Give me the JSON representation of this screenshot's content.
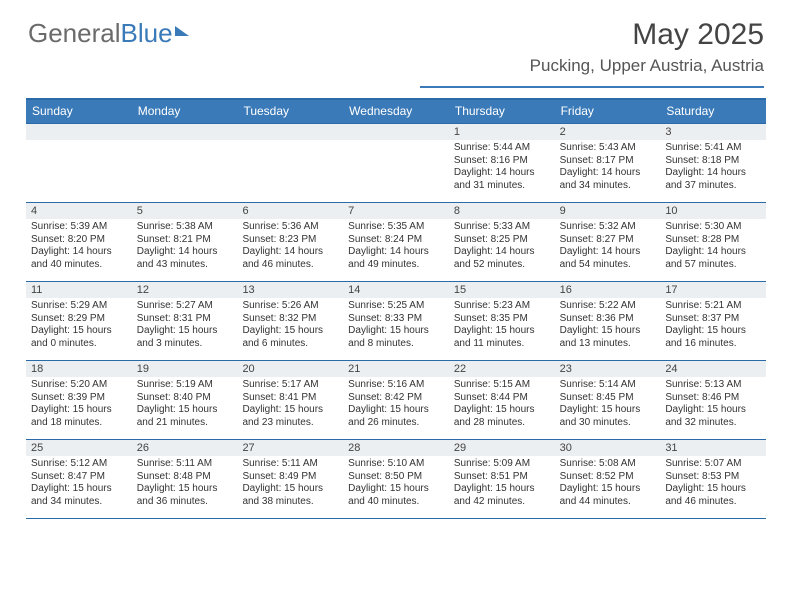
{
  "logo": {
    "part1": "General",
    "part2": "Blue"
  },
  "title": "May 2025",
  "location": "Pucking, Upper Austria, Austria",
  "dow": [
    "Sunday",
    "Monday",
    "Tuesday",
    "Wednesday",
    "Thursday",
    "Friday",
    "Saturday"
  ],
  "colors": {
    "accent": "#3a7ab8",
    "header_bg": "#3a7ab8",
    "daynum_bg": "#eceff1",
    "rule": "#2b6aa8"
  },
  "weeks": [
    [
      {
        "n": "",
        "sr": "",
        "ss": "",
        "dl": ""
      },
      {
        "n": "",
        "sr": "",
        "ss": "",
        "dl": ""
      },
      {
        "n": "",
        "sr": "",
        "ss": "",
        "dl": ""
      },
      {
        "n": "",
        "sr": "",
        "ss": "",
        "dl": ""
      },
      {
        "n": "1",
        "sr": "Sunrise: 5:44 AM",
        "ss": "Sunset: 8:16 PM",
        "dl": "Daylight: 14 hours and 31 minutes."
      },
      {
        "n": "2",
        "sr": "Sunrise: 5:43 AM",
        "ss": "Sunset: 8:17 PM",
        "dl": "Daylight: 14 hours and 34 minutes."
      },
      {
        "n": "3",
        "sr": "Sunrise: 5:41 AM",
        "ss": "Sunset: 8:18 PM",
        "dl": "Daylight: 14 hours and 37 minutes."
      }
    ],
    [
      {
        "n": "4",
        "sr": "Sunrise: 5:39 AM",
        "ss": "Sunset: 8:20 PM",
        "dl": "Daylight: 14 hours and 40 minutes."
      },
      {
        "n": "5",
        "sr": "Sunrise: 5:38 AM",
        "ss": "Sunset: 8:21 PM",
        "dl": "Daylight: 14 hours and 43 minutes."
      },
      {
        "n": "6",
        "sr": "Sunrise: 5:36 AM",
        "ss": "Sunset: 8:23 PM",
        "dl": "Daylight: 14 hours and 46 minutes."
      },
      {
        "n": "7",
        "sr": "Sunrise: 5:35 AM",
        "ss": "Sunset: 8:24 PM",
        "dl": "Daylight: 14 hours and 49 minutes."
      },
      {
        "n": "8",
        "sr": "Sunrise: 5:33 AM",
        "ss": "Sunset: 8:25 PM",
        "dl": "Daylight: 14 hours and 52 minutes."
      },
      {
        "n": "9",
        "sr": "Sunrise: 5:32 AM",
        "ss": "Sunset: 8:27 PM",
        "dl": "Daylight: 14 hours and 54 minutes."
      },
      {
        "n": "10",
        "sr": "Sunrise: 5:30 AM",
        "ss": "Sunset: 8:28 PM",
        "dl": "Daylight: 14 hours and 57 minutes."
      }
    ],
    [
      {
        "n": "11",
        "sr": "Sunrise: 5:29 AM",
        "ss": "Sunset: 8:29 PM",
        "dl": "Daylight: 15 hours and 0 minutes."
      },
      {
        "n": "12",
        "sr": "Sunrise: 5:27 AM",
        "ss": "Sunset: 8:31 PM",
        "dl": "Daylight: 15 hours and 3 minutes."
      },
      {
        "n": "13",
        "sr": "Sunrise: 5:26 AM",
        "ss": "Sunset: 8:32 PM",
        "dl": "Daylight: 15 hours and 6 minutes."
      },
      {
        "n": "14",
        "sr": "Sunrise: 5:25 AM",
        "ss": "Sunset: 8:33 PM",
        "dl": "Daylight: 15 hours and 8 minutes."
      },
      {
        "n": "15",
        "sr": "Sunrise: 5:23 AM",
        "ss": "Sunset: 8:35 PM",
        "dl": "Daylight: 15 hours and 11 minutes."
      },
      {
        "n": "16",
        "sr": "Sunrise: 5:22 AM",
        "ss": "Sunset: 8:36 PM",
        "dl": "Daylight: 15 hours and 13 minutes."
      },
      {
        "n": "17",
        "sr": "Sunrise: 5:21 AM",
        "ss": "Sunset: 8:37 PM",
        "dl": "Daylight: 15 hours and 16 minutes."
      }
    ],
    [
      {
        "n": "18",
        "sr": "Sunrise: 5:20 AM",
        "ss": "Sunset: 8:39 PM",
        "dl": "Daylight: 15 hours and 18 minutes."
      },
      {
        "n": "19",
        "sr": "Sunrise: 5:19 AM",
        "ss": "Sunset: 8:40 PM",
        "dl": "Daylight: 15 hours and 21 minutes."
      },
      {
        "n": "20",
        "sr": "Sunrise: 5:17 AM",
        "ss": "Sunset: 8:41 PM",
        "dl": "Daylight: 15 hours and 23 minutes."
      },
      {
        "n": "21",
        "sr": "Sunrise: 5:16 AM",
        "ss": "Sunset: 8:42 PM",
        "dl": "Daylight: 15 hours and 26 minutes."
      },
      {
        "n": "22",
        "sr": "Sunrise: 5:15 AM",
        "ss": "Sunset: 8:44 PM",
        "dl": "Daylight: 15 hours and 28 minutes."
      },
      {
        "n": "23",
        "sr": "Sunrise: 5:14 AM",
        "ss": "Sunset: 8:45 PM",
        "dl": "Daylight: 15 hours and 30 minutes."
      },
      {
        "n": "24",
        "sr": "Sunrise: 5:13 AM",
        "ss": "Sunset: 8:46 PM",
        "dl": "Daylight: 15 hours and 32 minutes."
      }
    ],
    [
      {
        "n": "25",
        "sr": "Sunrise: 5:12 AM",
        "ss": "Sunset: 8:47 PM",
        "dl": "Daylight: 15 hours and 34 minutes."
      },
      {
        "n": "26",
        "sr": "Sunrise: 5:11 AM",
        "ss": "Sunset: 8:48 PM",
        "dl": "Daylight: 15 hours and 36 minutes."
      },
      {
        "n": "27",
        "sr": "Sunrise: 5:11 AM",
        "ss": "Sunset: 8:49 PM",
        "dl": "Daylight: 15 hours and 38 minutes."
      },
      {
        "n": "28",
        "sr": "Sunrise: 5:10 AM",
        "ss": "Sunset: 8:50 PM",
        "dl": "Daylight: 15 hours and 40 minutes."
      },
      {
        "n": "29",
        "sr": "Sunrise: 5:09 AM",
        "ss": "Sunset: 8:51 PM",
        "dl": "Daylight: 15 hours and 42 minutes."
      },
      {
        "n": "30",
        "sr": "Sunrise: 5:08 AM",
        "ss": "Sunset: 8:52 PM",
        "dl": "Daylight: 15 hours and 44 minutes."
      },
      {
        "n": "31",
        "sr": "Sunrise: 5:07 AM",
        "ss": "Sunset: 8:53 PM",
        "dl": "Daylight: 15 hours and 46 minutes."
      }
    ]
  ]
}
